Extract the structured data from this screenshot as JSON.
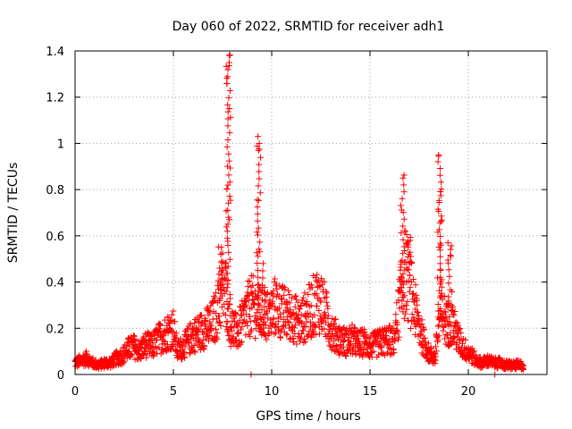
{
  "chart_data": {
    "type": "scatter",
    "title": "Day 060 of 2022, SRMTID for receiver adh1",
    "xlabel": "GPS time / hours",
    "ylabel": "SRMTID / TECUs",
    "xlim": [
      0,
      24
    ],
    "ylim": [
      0,
      1.4
    ],
    "xticks": [
      0,
      5,
      10,
      15,
      20
    ],
    "yticks": [
      0,
      0.2,
      0.4,
      0.6,
      0.8,
      1,
      1.2,
      1.4
    ],
    "ytick_labels": [
      "0",
      "0.2",
      "0.4",
      "0.6",
      "0.8",
      "1",
      "1.2",
      "1.4"
    ],
    "grid": true,
    "marker": "+",
    "color": "#ff0000",
    "series": [
      {
        "name": "adh1",
        "baseline": [
          [
            0.0,
            0.05
          ],
          [
            0.3,
            0.06
          ],
          [
            0.6,
            0.07
          ],
          [
            0.9,
            0.05
          ],
          [
            1.2,
            0.04
          ],
          [
            1.5,
            0.05
          ],
          [
            1.8,
            0.05
          ],
          [
            2.1,
            0.07
          ],
          [
            2.4,
            0.08
          ],
          [
            2.7,
            0.11
          ],
          [
            3.0,
            0.12
          ],
          [
            3.3,
            0.1
          ],
          [
            3.6,
            0.13
          ],
          [
            3.9,
            0.12
          ],
          [
            4.2,
            0.15
          ],
          [
            4.5,
            0.17
          ],
          [
            4.8,
            0.19
          ],
          [
            5.0,
            0.2
          ],
          [
            5.2,
            0.1
          ],
          [
            5.5,
            0.12
          ],
          [
            5.8,
            0.15
          ],
          [
            6.0,
            0.17
          ],
          [
            6.3,
            0.18
          ],
          [
            6.6,
            0.2
          ],
          [
            6.9,
            0.21
          ],
          [
            7.2,
            0.26
          ],
          [
            7.5,
            0.38
          ],
          [
            7.7,
            0.35
          ],
          [
            7.9,
            0.22
          ],
          [
            8.2,
            0.18
          ],
          [
            8.5,
            0.22
          ],
          [
            8.8,
            0.28
          ],
          [
            9.0,
            0.3
          ],
          [
            9.3,
            0.27
          ],
          [
            9.6,
            0.26
          ],
          [
            9.9,
            0.25
          ],
          [
            10.2,
            0.3
          ],
          [
            10.5,
            0.27
          ],
          [
            10.8,
            0.26
          ],
          [
            11.1,
            0.25
          ],
          [
            11.4,
            0.22
          ],
          [
            11.7,
            0.25
          ],
          [
            12.0,
            0.28
          ],
          [
            12.3,
            0.32
          ],
          [
            12.6,
            0.3
          ],
          [
            12.9,
            0.22
          ],
          [
            13.2,
            0.17
          ],
          [
            13.5,
            0.15
          ],
          [
            13.8,
            0.14
          ],
          [
            14.1,
            0.15
          ],
          [
            14.4,
            0.13
          ],
          [
            14.7,
            0.14
          ],
          [
            15.0,
            0.12
          ],
          [
            15.3,
            0.13
          ],
          [
            15.6,
            0.14
          ],
          [
            15.9,
            0.15
          ],
          [
            16.2,
            0.14
          ],
          [
            16.5,
            0.3
          ],
          [
            16.8,
            0.45
          ],
          [
            17.1,
            0.35
          ],
          [
            17.4,
            0.24
          ],
          [
            17.7,
            0.15
          ],
          [
            18.0,
            0.09
          ],
          [
            18.3,
            0.07
          ],
          [
            18.6,
            0.28
          ],
          [
            18.9,
            0.22
          ],
          [
            19.2,
            0.22
          ],
          [
            19.5,
            0.15
          ],
          [
            19.8,
            0.11
          ],
          [
            20.1,
            0.09
          ],
          [
            20.4,
            0.06
          ],
          [
            20.7,
            0.05
          ],
          [
            21.0,
            0.06
          ],
          [
            21.3,
            0.05
          ],
          [
            21.6,
            0.05
          ],
          [
            21.9,
            0.04
          ],
          [
            22.2,
            0.04
          ],
          [
            22.5,
            0.04
          ],
          [
            22.8,
            0.04
          ]
        ],
        "spikes": [
          {
            "x": 7.4,
            "y": 0.55
          },
          {
            "x": 7.8,
            "y": 1.38
          },
          {
            "x": 9.35,
            "y": 1.03
          },
          {
            "x": 9.6,
            "y": 0.48
          },
          {
            "x": 16.65,
            "y": 0.85
          },
          {
            "x": 16.95,
            "y": 0.58
          },
          {
            "x": 18.55,
            "y": 0.95
          },
          {
            "x": 19.05,
            "y": 0.57
          }
        ],
        "outliers": [
          {
            "x": 8.95,
            "y": 0.0
          },
          {
            "x": 21.35,
            "y": 0.0
          }
        ]
      }
    ]
  }
}
